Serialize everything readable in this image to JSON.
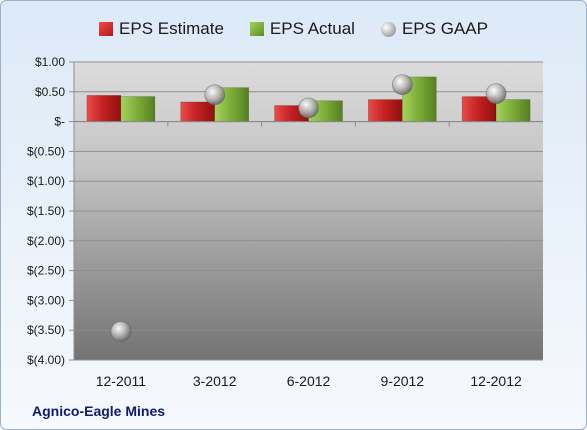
{
  "chart_data": {
    "type": "bar",
    "title": "",
    "xlabel": "",
    "ylabel": "",
    "categories": [
      "12-2011",
      "3-2012",
      "6-2012",
      "9-2012",
      "12-2012"
    ],
    "ylim": [
      -4.0,
      1.0
    ],
    "yticks": [
      1.0,
      0.5,
      0.0,
      -0.5,
      -1.0,
      -1.5,
      -2.0,
      -2.5,
      -3.0,
      -3.5,
      -4.0
    ],
    "ytick_labels": [
      "$1.00",
      "$0.50",
      "$-",
      "$(0.50)",
      "$(1.00)",
      "$(1.50)",
      "$(2.00)",
      "$(2.50)",
      "$(3.00)",
      "$(3.50)",
      "$(4.00)"
    ],
    "grid": true,
    "legend_position": "top",
    "series": [
      {
        "name": "EPS Estimate",
        "kind": "bar",
        "color": "#c62222",
        "values": [
          0.44,
          0.33,
          0.27,
          0.37,
          0.42
        ]
      },
      {
        "name": "EPS Actual",
        "kind": "bar",
        "color": "#7bab37",
        "values": [
          0.42,
          0.57,
          0.35,
          0.75,
          0.37
        ]
      },
      {
        "name": "EPS GAAP",
        "kind": "marker",
        "color": "#a8a8a8",
        "values": [
          -3.52,
          0.45,
          0.23,
          0.62,
          0.47
        ]
      }
    ],
    "caption": "Agnico-Eagle Mines"
  }
}
